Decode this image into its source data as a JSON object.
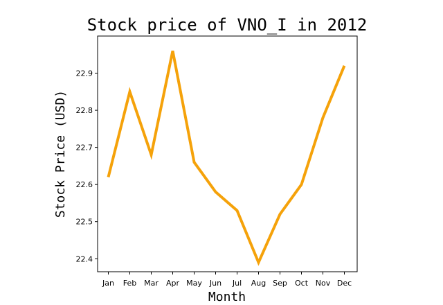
{
  "chart_data": {
    "type": "line",
    "title": "Stock price of VNO_I in 2012",
    "xlabel": "Month",
    "ylabel": "Stock Price (USD)",
    "categories": [
      "Jan",
      "Feb",
      "Mar",
      "Apr",
      "May",
      "Jun",
      "Jul",
      "Aug",
      "Sep",
      "Oct",
      "Nov",
      "Dec"
    ],
    "series": [
      {
        "values": [
          22.62,
          22.85,
          22.68,
          22.96,
          22.66,
          22.58,
          22.53,
          22.39,
          22.52,
          22.6,
          22.78,
          22.92
        ]
      }
    ],
    "ylim": [
      22.365,
      23.0
    ],
    "yticks": [
      22.4,
      22.5,
      22.6,
      22.7,
      22.8,
      22.9
    ],
    "grid": false,
    "line_color": "#f5a20a"
  }
}
